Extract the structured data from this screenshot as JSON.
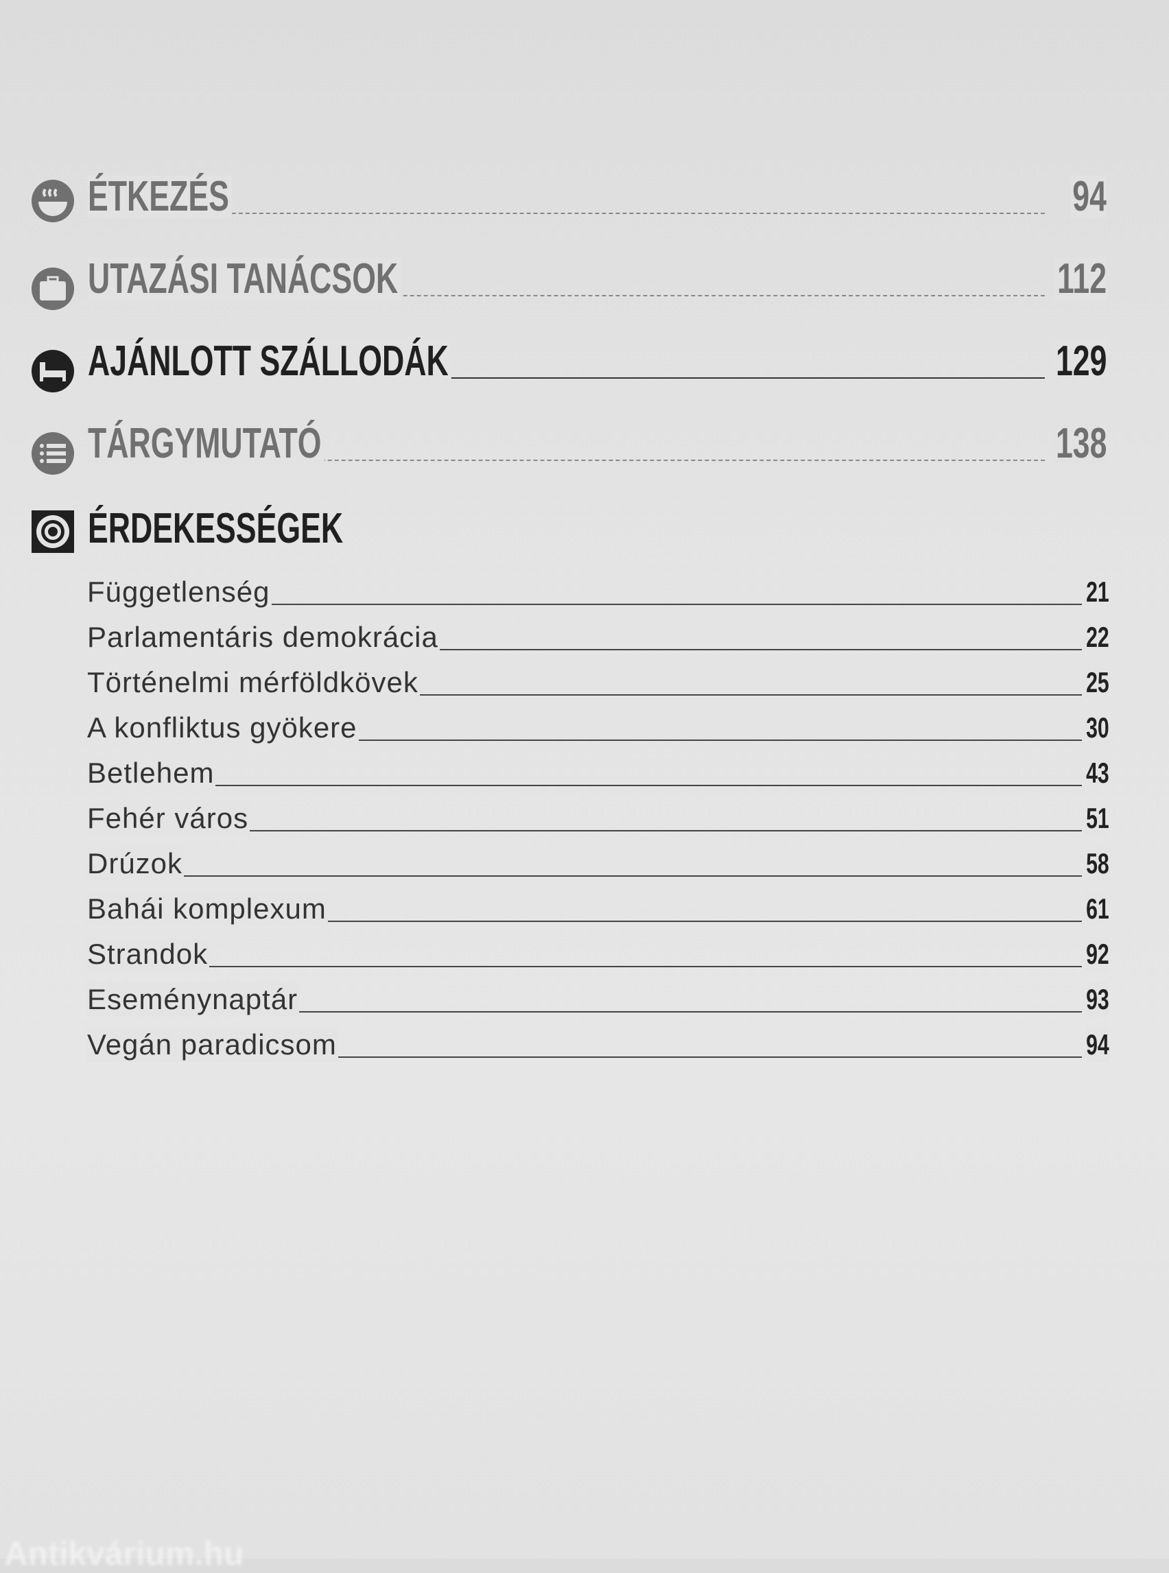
{
  "sections": [
    {
      "title": "ÉTKEZÉS",
      "page": "94",
      "icon": "food-bowl-icon",
      "style": "gray"
    },
    {
      "title": "UTAZÁSI TANÁCSOK",
      "page": "112",
      "icon": "suitcase-icon",
      "style": "gray"
    },
    {
      "title": "AJÁNLOTT SZÁLLODÁK",
      "page": "129",
      "icon": "bed-icon",
      "style": "dark"
    },
    {
      "title": "TÁRGYMUTATÓ",
      "page": "138",
      "icon": "list-icon",
      "style": "gray"
    }
  ],
  "highlights": {
    "title": "ÉRDEKESSÉGEK",
    "icon": "target-icon",
    "items": [
      {
        "label": "Függetlenség",
        "page": "21"
      },
      {
        "label": "Parlamentáris demokrácia",
        "page": "22"
      },
      {
        "label": "Történelmi mérföldkövek",
        "page": "25"
      },
      {
        "label": "A konfliktus gyökere",
        "page": "30"
      },
      {
        "label": "Betlehem",
        "page": "43"
      },
      {
        "label": "Fehér város",
        "page": "51"
      },
      {
        "label": "Drúzok",
        "page": "58"
      },
      {
        "label": "Bahái komplexum",
        "page": "61"
      },
      {
        "label": "Strandok",
        "page": "92"
      },
      {
        "label": "Eseménynaptár",
        "page": "93"
      },
      {
        "label": "Vegán paradicsom",
        "page": "94"
      }
    ]
  },
  "watermark": "Antikvárium.hu",
  "colors": {
    "gray_heading": "#707070",
    "dark_heading": "#202020",
    "background": "#e2e2e2"
  }
}
